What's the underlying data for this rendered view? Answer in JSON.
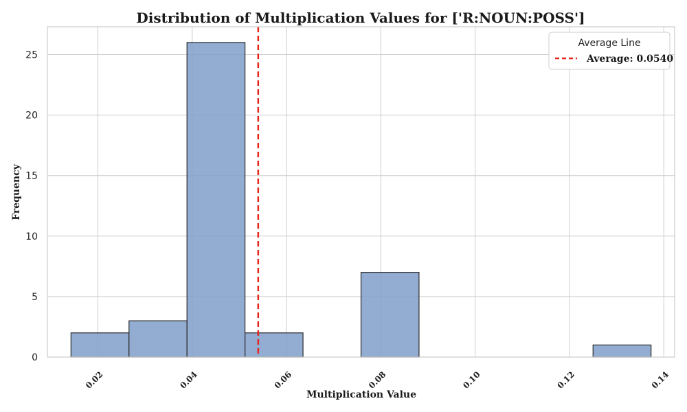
{
  "chart_data": {
    "type": "bar",
    "title": "Distribution of Multiplication Values for ['R:NOUN:POSS']",
    "xlabel": "Multiplication Value",
    "ylabel": "Frequency",
    "xlim": [
      0.0093,
      0.1423
    ],
    "ylim": [
      0,
      27.3
    ],
    "xticks": [
      0.02,
      0.04,
      0.06,
      0.08,
      0.1,
      0.12,
      0.14
    ],
    "xtick_labels": [
      "0.02",
      "0.04",
      "0.06",
      "0.08",
      "0.10",
      "0.12",
      "0.14"
    ],
    "yticks": [
      0,
      5,
      10,
      15,
      20,
      25
    ],
    "ytick_labels": [
      "0",
      "5",
      "10",
      "15",
      "20",
      "25"
    ],
    "grid": true,
    "bins": [
      {
        "x0": 0.0143,
        "x1": 0.0266,
        "count": 2
      },
      {
        "x0": 0.0266,
        "x1": 0.0389,
        "count": 3
      },
      {
        "x0": 0.0389,
        "x1": 0.0512,
        "count": 26
      },
      {
        "x0": 0.0512,
        "x1": 0.0635,
        "count": 2
      },
      {
        "x0": 0.0635,
        "x1": 0.0758,
        "count": 0
      },
      {
        "x0": 0.0758,
        "x1": 0.0881,
        "count": 7
      },
      {
        "x0": 0.0881,
        "x1": 0.1004,
        "count": 0
      },
      {
        "x0": 0.1004,
        "x1": 0.1127,
        "count": 0
      },
      {
        "x0": 0.1127,
        "x1": 0.125,
        "count": 0
      },
      {
        "x0": 0.125,
        "x1": 0.1373,
        "count": 1
      }
    ],
    "average": 0.054,
    "legend": {
      "title": "Average Line",
      "entry": "Average: 0.0540",
      "placement": "top-right"
    },
    "colors": {
      "bar_fill": "#7b9bc8",
      "bar_edge": "#2b2b2b",
      "average_line": "#e8231c",
      "grid": "#cccccc"
    }
  }
}
